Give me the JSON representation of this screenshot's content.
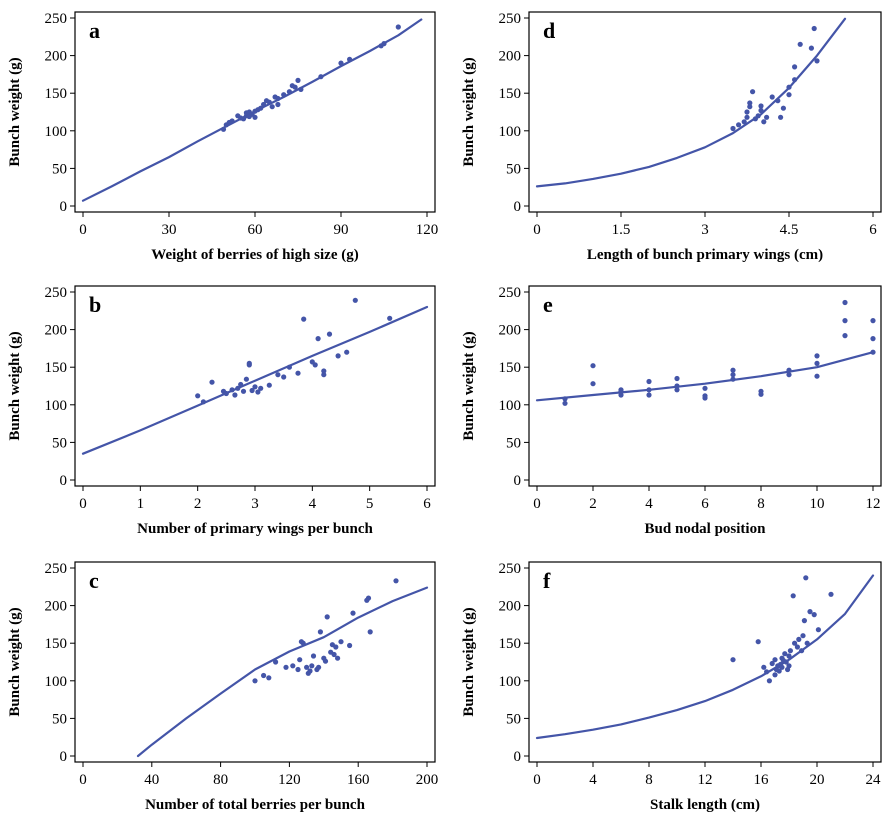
{
  "colors": {
    "series": "#4455a8",
    "axis": "#000000",
    "frame": "#000000"
  },
  "chart_data": [
    {
      "panel": "a",
      "type": "scatter",
      "xlabel": "Weight of berries of high size (g)",
      "ylabel": "Bunch weight (g)",
      "xlim": [
        0,
        120
      ],
      "ylim": [
        0,
        250
      ],
      "xticks": [
        "0",
        "30",
        "60",
        "90",
        "120"
      ],
      "yticks": [
        "0",
        "50",
        "100",
        "150",
        "200",
        "250"
      ],
      "points": [
        [
          49,
          102
        ],
        [
          50,
          108
        ],
        [
          51,
          111
        ],
        [
          52,
          113
        ],
        [
          54,
          120
        ],
        [
          55,
          117
        ],
        [
          56,
          116
        ],
        [
          57,
          120
        ],
        [
          57,
          124
        ],
        [
          58,
          119
        ],
        [
          58,
          125
        ],
        [
          59,
          122
        ],
        [
          60,
          126
        ],
        [
          60,
          118
        ],
        [
          61,
          128
        ],
        [
          62,
          130
        ],
        [
          63,
          135
        ],
        [
          64,
          140
        ],
        [
          65,
          138
        ],
        [
          66,
          132
        ],
        [
          67,
          145
        ],
        [
          68,
          143
        ],
        [
          68,
          135
        ],
        [
          70,
          148
        ],
        [
          72,
          152
        ],
        [
          73,
          160
        ],
        [
          74,
          158
        ],
        [
          75,
          167
        ],
        [
          76,
          155
        ],
        [
          83,
          172
        ],
        [
          90,
          190
        ],
        [
          93,
          195
        ],
        [
          104,
          213
        ],
        [
          105,
          216
        ],
        [
          110,
          238
        ]
      ],
      "fit": [
        [
          0,
          7
        ],
        [
          10,
          26
        ],
        [
          20,
          46
        ],
        [
          30,
          65
        ],
        [
          40,
          86
        ],
        [
          50,
          106
        ],
        [
          60,
          126
        ],
        [
          70,
          145
        ],
        [
          80,
          165
        ],
        [
          90,
          186
        ],
        [
          100,
          206
        ],
        [
          110,
          227
        ],
        [
          118,
          248
        ]
      ]
    },
    {
      "panel": "d",
      "type": "scatter",
      "xlabel": "Length of bunch primary wings (cm)",
      "ylabel": "Bunch weight (g)",
      "xlim": [
        0,
        6
      ],
      "ylim": [
        0,
        250
      ],
      "xticks": [
        "0",
        "1.5",
        "3",
        "4.5",
        "6"
      ],
      "yticks": [
        "0",
        "50",
        "100",
        "150",
        "200",
        "250"
      ],
      "points": [
        [
          3.5,
          103
        ],
        [
          3.6,
          108
        ],
        [
          3.7,
          112
        ],
        [
          3.75,
          118
        ],
        [
          3.75,
          125
        ],
        [
          3.8,
          132
        ],
        [
          3.8,
          137
        ],
        [
          3.85,
          152
        ],
        [
          3.9,
          116
        ],
        [
          3.95,
          120
        ],
        [
          4.0,
          127
        ],
        [
          4.0,
          133
        ],
        [
          4.05,
          112
        ],
        [
          4.1,
          118
        ],
        [
          4.2,
          145
        ],
        [
          4.3,
          140
        ],
        [
          4.35,
          118
        ],
        [
          4.4,
          130
        ],
        [
          4.5,
          148
        ],
        [
          4.5,
          158
        ],
        [
          4.6,
          185
        ],
        [
          4.6,
          168
        ],
        [
          4.7,
          215
        ],
        [
          4.9,
          210
        ],
        [
          4.95,
          236
        ],
        [
          5.0,
          193
        ]
      ],
      "fit": [
        [
          0,
          26
        ],
        [
          0.5,
          30
        ],
        [
          1,
          36
        ],
        [
          1.5,
          43
        ],
        [
          2,
          52
        ],
        [
          2.5,
          64
        ],
        [
          3,
          78
        ],
        [
          3.5,
          97
        ],
        [
          4,
          122
        ],
        [
          4.5,
          157
        ],
        [
          5,
          200
        ],
        [
          5.5,
          249
        ]
      ]
    },
    {
      "panel": "b",
      "type": "scatter",
      "xlabel": "Number of primary wings per bunch",
      "ylabel": "Bunch weight (g)",
      "xlim": [
        0,
        6
      ],
      "ylim": [
        0,
        250
      ],
      "xticks": [
        "0",
        "1",
        "2",
        "3",
        "4",
        "5",
        "6"
      ],
      "yticks": [
        "0",
        "50",
        "100",
        "150",
        "200",
        "250"
      ],
      "points": [
        [
          2.0,
          112
        ],
        [
          2.1,
          104
        ],
        [
          2.25,
          130
        ],
        [
          2.45,
          118
        ],
        [
          2.5,
          115
        ],
        [
          2.6,
          120
        ],
        [
          2.65,
          113
        ],
        [
          2.7,
          122
        ],
        [
          2.75,
          127
        ],
        [
          2.8,
          118
        ],
        [
          2.85,
          134
        ],
        [
          2.9,
          153
        ],
        [
          2.9,
          155
        ],
        [
          2.95,
          119
        ],
        [
          3.0,
          124
        ],
        [
          3.05,
          117
        ],
        [
          3.1,
          122
        ],
        [
          3.25,
          126
        ],
        [
          3.4,
          140
        ],
        [
          3.5,
          137
        ],
        [
          3.6,
          150
        ],
        [
          3.75,
          142
        ],
        [
          3.85,
          214
        ],
        [
          4.0,
          157
        ],
        [
          4.05,
          153
        ],
        [
          4.1,
          188
        ],
        [
          4.2,
          145
        ],
        [
          4.2,
          140
        ],
        [
          4.3,
          194
        ],
        [
          4.45,
          165
        ],
        [
          4.6,
          170
        ],
        [
          4.75,
          239
        ],
        [
          5.35,
          215
        ]
      ],
      "fit": [
        [
          0,
          35
        ],
        [
          1,
          66
        ],
        [
          2,
          99
        ],
        [
          3,
          132
        ],
        [
          4,
          165
        ],
        [
          5,
          197
        ],
        [
          6,
          230
        ]
      ]
    },
    {
      "panel": "e",
      "type": "scatter",
      "xlabel": "Bud nodal position",
      "ylabel": "Bunch weight (g)",
      "xlim": [
        0,
        12
      ],
      "ylim": [
        0,
        250
      ],
      "xticks": [
        "0",
        "2",
        "4",
        "6",
        "8",
        "10",
        "12"
      ],
      "yticks": [
        "0",
        "50",
        "100",
        "150",
        "200",
        "250"
      ],
      "points": [
        [
          1,
          102
        ],
        [
          1,
          108
        ],
        [
          2,
          152
        ],
        [
          2,
          128
        ],
        [
          3,
          118
        ],
        [
          3,
          113
        ],
        [
          3,
          120
        ],
        [
          4,
          131
        ],
        [
          4,
          120
        ],
        [
          4,
          113
        ],
        [
          5,
          135
        ],
        [
          5,
          125
        ],
        [
          5,
          120
        ],
        [
          6,
          122
        ],
        [
          6,
          112
        ],
        [
          6,
          109
        ],
        [
          7,
          146
        ],
        [
          7,
          140
        ],
        [
          7,
          134
        ],
        [
          8,
          118
        ],
        [
          8,
          114
        ],
        [
          9,
          146
        ],
        [
          9,
          140
        ],
        [
          10,
          165
        ],
        [
          10,
          155
        ],
        [
          10,
          138
        ],
        [
          11,
          236
        ],
        [
          11,
          212
        ],
        [
          11,
          192
        ],
        [
          12,
          212
        ],
        [
          12,
          188
        ],
        [
          12,
          170
        ]
      ],
      "fit": [
        [
          0,
          106
        ],
        [
          2,
          113
        ],
        [
          4,
          120
        ],
        [
          6,
          128
        ],
        [
          8,
          138
        ],
        [
          10,
          150
        ],
        [
          12,
          170
        ]
      ]
    },
    {
      "panel": "c",
      "type": "scatter",
      "xlabel": "Number of total berries per bunch",
      "ylabel": "Bunch weight (g)",
      "xlim": [
        0,
        200
      ],
      "ylim": [
        0,
        250
      ],
      "xticks": [
        "0",
        "40",
        "80",
        "120",
        "160",
        "200"
      ],
      "yticks": [
        "0",
        "50",
        "100",
        "150",
        "200",
        "250"
      ],
      "points": [
        [
          100,
          100
        ],
        [
          105,
          107
        ],
        [
          108,
          104
        ],
        [
          112,
          125
        ],
        [
          118,
          118
        ],
        [
          122,
          120
        ],
        [
          125,
          115
        ],
        [
          126,
          128
        ],
        [
          127,
          152
        ],
        [
          128,
          150
        ],
        [
          130,
          118
        ],
        [
          131,
          110
        ],
        [
          132,
          113
        ],
        [
          133,
          120
        ],
        [
          134,
          133
        ],
        [
          136,
          115
        ],
        [
          137,
          118
        ],
        [
          138,
          165
        ],
        [
          140,
          130
        ],
        [
          141,
          126
        ],
        [
          142,
          185
        ],
        [
          144,
          138
        ],
        [
          145,
          148
        ],
        [
          146,
          135
        ],
        [
          147,
          145
        ],
        [
          148,
          130
        ],
        [
          150,
          152
        ],
        [
          155,
          147
        ],
        [
          157,
          190
        ],
        [
          165,
          207
        ],
        [
          166,
          210
        ],
        [
          167,
          165
        ],
        [
          182,
          233
        ]
      ],
      "fit": [
        [
          32,
          0
        ],
        [
          40,
          15
        ],
        [
          60,
          50
        ],
        [
          80,
          83
        ],
        [
          100,
          115
        ],
        [
          120,
          139
        ],
        [
          140,
          158
        ],
        [
          160,
          184
        ],
        [
          180,
          206
        ],
        [
          200,
          224
        ]
      ]
    },
    {
      "panel": "f",
      "type": "scatter",
      "xlabel": "Stalk length (cm)",
      "ylabel": "Bunch weight (g)",
      "xlim": [
        0,
        24
      ],
      "ylim": [
        0,
        250
      ],
      "xticks": [
        "0",
        "4",
        "8",
        "12",
        "16",
        "20",
        "24"
      ],
      "yticks": [
        "0",
        "50",
        "100",
        "150",
        "200",
        "250"
      ],
      "points": [
        [
          14,
          128
        ],
        [
          15.8,
          152
        ],
        [
          16.2,
          118
        ],
        [
          16.4,
          112
        ],
        [
          16.6,
          100
        ],
        [
          16.8,
          123
        ],
        [
          17,
          128
        ],
        [
          17,
          108
        ],
        [
          17.1,
          115
        ],
        [
          17.2,
          120
        ],
        [
          17.3,
          113
        ],
        [
          17.4,
          122
        ],
        [
          17.5,
          130
        ],
        [
          17.5,
          118
        ],
        [
          17.6,
          127
        ],
        [
          17.7,
          136
        ],
        [
          17.8,
          125
        ],
        [
          17.9,
          115
        ],
        [
          18,
          120
        ],
        [
          18,
          133
        ],
        [
          18.1,
          140
        ],
        [
          18.3,
          213
        ],
        [
          18.4,
          150
        ],
        [
          18.6,
          145
        ],
        [
          18.7,
          155
        ],
        [
          18.9,
          140
        ],
        [
          19,
          160
        ],
        [
          19.1,
          180
        ],
        [
          19.2,
          237
        ],
        [
          19.3,
          150
        ],
        [
          19.5,
          192
        ],
        [
          19.8,
          188
        ],
        [
          20.1,
          168
        ],
        [
          21,
          215
        ]
      ],
      "fit": [
        [
          0,
          24
        ],
        [
          2,
          29
        ],
        [
          4,
          35
        ],
        [
          6,
          42
        ],
        [
          8,
          51
        ],
        [
          10,
          61
        ],
        [
          12,
          73
        ],
        [
          14,
          88
        ],
        [
          16,
          106
        ],
        [
          18,
          128
        ],
        [
          20,
          155
        ],
        [
          22,
          189
        ],
        [
          24,
          240
        ]
      ]
    }
  ]
}
